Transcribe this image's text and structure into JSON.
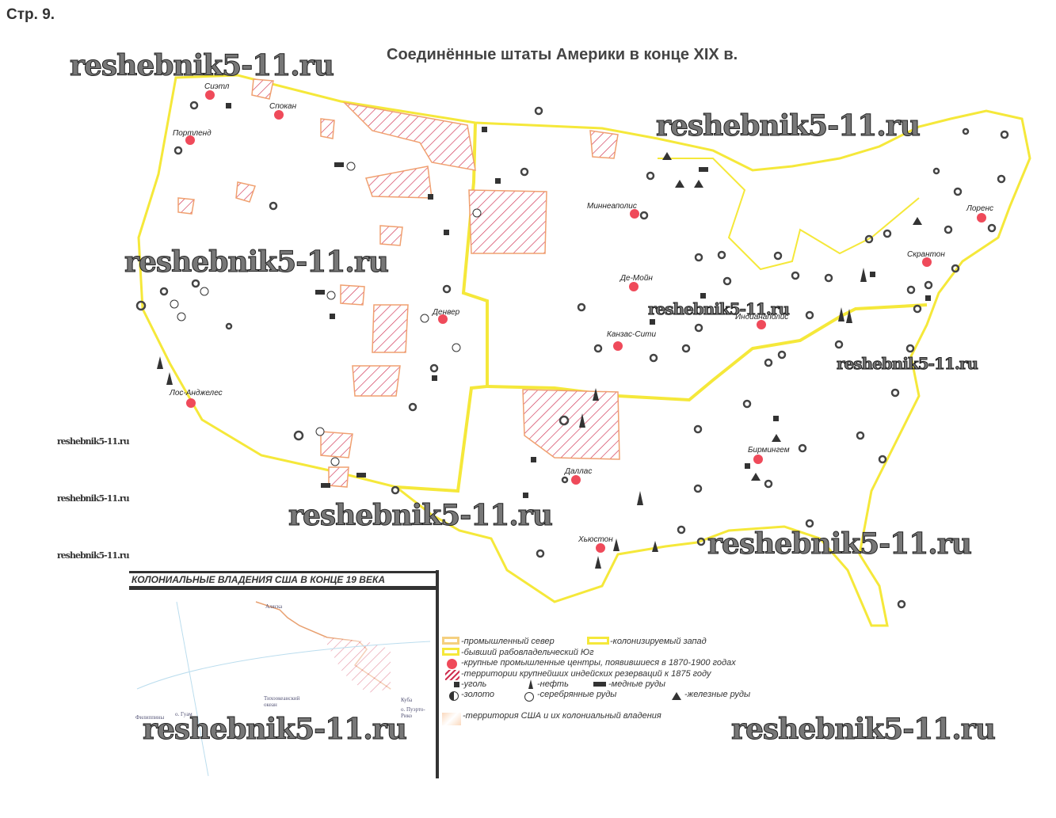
{
  "page_label": "Стр. 9.",
  "map_title": "Соединённые штаты Америки в конце XIX в.",
  "watermark": "reshebnik5-11.ru",
  "cities": [
    "Сиэтл",
    "Спокан",
    "Портленд",
    "Лос-Анджелес",
    "Денвер",
    "Миннеаполис",
    "Де-Мойн",
    "Канзас-Сити",
    "Индианаполис",
    "Даллас",
    "Хьюстон",
    "Бирмингем",
    "Скрантон",
    "Лоренс"
  ],
  "inset": {
    "title": "КОЛОНИАЛЬНЫЕ ВЛАДЕНИЯ США В КОНЦЕ 19 ВЕКА",
    "labels": [
      "Аляска",
      "Тихоокеанский океан",
      "о. Гуам",
      "Филиппины",
      "Куба",
      "о. Пуэрто-Рико"
    ]
  },
  "legend": {
    "north": "-промышленный север",
    "west": "-колонизируемый запад",
    "south": "-бывший рабовладельческий Юг",
    "centers": "-крупные промышленные центры, появившиеся в 1870-1900 годах",
    "reservations": "-территории крупнейших индейских резерваций к 1875 году",
    "coal": "-уголь",
    "oil": "-нефть",
    "copper": "-медные руды",
    "gold": "-золото",
    "silver": "-серебрянные руды",
    "iron": "-железные руды",
    "territory": "-территория США и их колониальный владения"
  },
  "colors": {
    "border": "#f5e83a",
    "city": "#ef4a5a",
    "hatch": "#d03050",
    "hatch_fill": "#fbd9bd"
  }
}
